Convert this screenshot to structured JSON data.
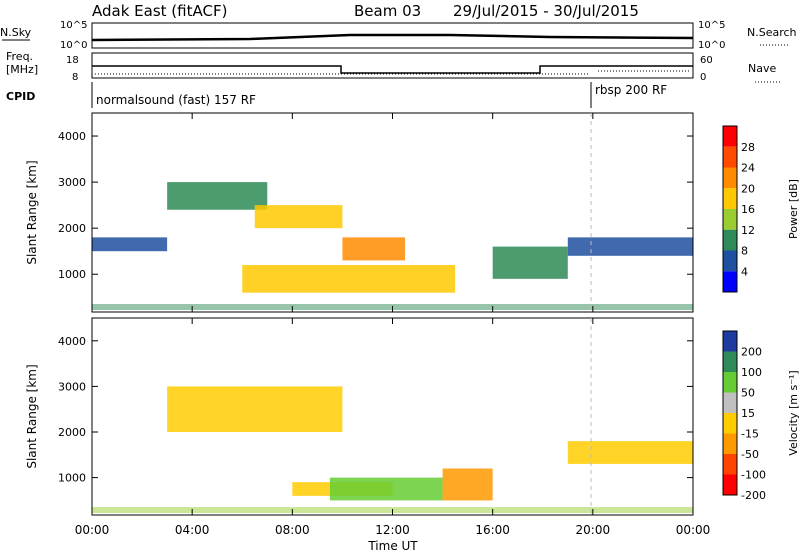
{
  "header": {
    "station": "Adak East (fitACF)",
    "beam": "Beam 03",
    "dates": "29/Jul/2015 - 30/Jul/2015"
  },
  "top_panels": {
    "nsky_label": "N.Sky",
    "nsky_ticks": [
      "10^5",
      "10^0"
    ],
    "nsearch_label": "N.Search",
    "freq_label_1": "Freq.",
    "freq_label_2": "[MHz]",
    "freq_ticks": [
      "18",
      "8"
    ],
    "nave_label": "Nave",
    "nave_ticks": [
      "60",
      "0"
    ],
    "cpid_label": "CPID",
    "cpid_1": "normalsound (fast) 157 RF",
    "cpid_2": "rbsp 200 RF"
  },
  "power_colorbar": {
    "label": "Power [dB]",
    "ticks": [
      "28",
      "24",
      "20",
      "16",
      "12",
      "8",
      "4"
    ],
    "colors": [
      "#ff0000",
      "#ff4a00",
      "#ff8c00",
      "#ffc800",
      "#9acd32",
      "#2e8b57",
      "#1e4fa0",
      "#0000ff"
    ]
  },
  "velocity_colorbar": {
    "label": "Velocity [m s⁻¹]",
    "ticks": [
      "200",
      "100",
      "50",
      "15",
      "-15",
      "-50",
      "-100",
      "-200"
    ],
    "colors": [
      "#1e3ca0",
      "#2e8b57",
      "#66cc33",
      "#c0c0c0",
      "#ffcc00",
      "#ff9900",
      "#ff4400",
      "#ff0000"
    ]
  },
  "chart_data": [
    {
      "type": "heatmap",
      "name_hint": "power",
      "ylabel": "Slant Range [km]",
      "xlabel": "Time UT",
      "x_ticks": [
        "00:00",
        "04:00",
        "08:00",
        "12:00",
        "16:00",
        "20:00",
        "00:00"
      ],
      "y_ticks": [
        1000,
        2000,
        3000,
        4000
      ],
      "xlim": [
        0,
        24
      ],
      "ylim": [
        180,
        4500
      ],
      "regions": [
        {
          "t": [
            0.0,
            3.0
          ],
          "r": [
            1500,
            1800
          ],
          "value": 8
        },
        {
          "t": [
            3.0,
            7.0
          ],
          "r": [
            2400,
            3000
          ],
          "value": 12
        },
        {
          "t": [
            6.5,
            10.0
          ],
          "r": [
            2000,
            2500
          ],
          "value": 20
        },
        {
          "t": [
            10.0,
            12.5
          ],
          "r": [
            1300,
            1800
          ],
          "value": 24
        },
        {
          "t": [
            6.0,
            14.5
          ],
          "r": [
            600,
            1200
          ],
          "value": 20
        },
        {
          "t": [
            16.0,
            19.0
          ],
          "r": [
            900,
            1600
          ],
          "value": 12
        },
        {
          "t": [
            19.0,
            24.0
          ],
          "r": [
            1400,
            1800
          ],
          "value": 8
        }
      ]
    },
    {
      "type": "heatmap",
      "name_hint": "velocity",
      "ylabel": "Slant Range [km]",
      "xlabel": "Time UT",
      "x_ticks": [
        "00:00",
        "04:00",
        "08:00",
        "12:00",
        "16:00",
        "20:00",
        "00:00"
      ],
      "y_ticks": [
        1000,
        2000,
        3000,
        4000
      ],
      "xlim": [
        0,
        24
      ],
      "ylim": [
        180,
        4500
      ],
      "regions": [
        {
          "t": [
            3.0,
            10.0
          ],
          "r": [
            2000,
            3000
          ],
          "value": 0
        },
        {
          "t": [
            8.0,
            12.0
          ],
          "r": [
            600,
            900
          ],
          "value": 0
        },
        {
          "t": [
            9.5,
            14.0
          ],
          "r": [
            500,
            1000
          ],
          "value": 50
        },
        {
          "t": [
            14.0,
            16.0
          ],
          "r": [
            500,
            1200
          ],
          "value": -30
        },
        {
          "t": [
            19.0,
            24.0
          ],
          "r": [
            1300,
            1800
          ],
          "value": 0
        }
      ]
    }
  ]
}
